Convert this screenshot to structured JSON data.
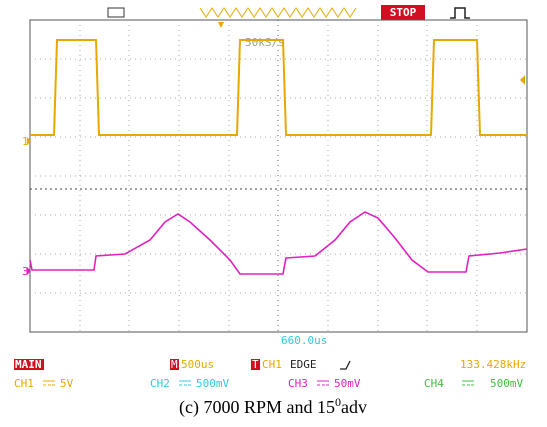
{
  "screen": {
    "sample_rate": "50kS/s",
    "run_state": "STOP",
    "ch1_marker": "1",
    "ch3_marker": "3",
    "trigger_position": "660.0us"
  },
  "status": {
    "mode": "MAIN",
    "timebase_tag": "M",
    "timebase": "500us",
    "trigger_tag": "T",
    "trigger_source": "CH1",
    "trigger_type": "EDGE",
    "frequency": "133.428kHz"
  },
  "channels": [
    {
      "name": "CH1",
      "scale": "5V"
    },
    {
      "name": "CH2",
      "scale": "500mV"
    },
    {
      "name": "CH3",
      "scale": "50mV"
    },
    {
      "name": "CH4",
      "scale": "500mV"
    }
  ],
  "caption": {
    "text": "(c) 7000 RPM and 15",
    "superscript": "0",
    "suffix": "adv"
  }
}
